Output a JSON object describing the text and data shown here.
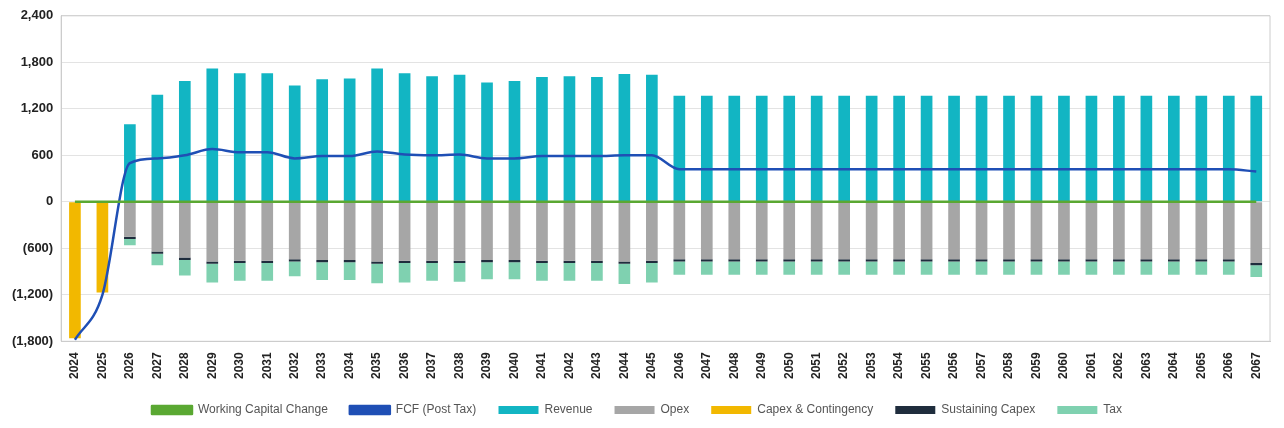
{
  "chart_data": {
    "type": "bar",
    "stacked": true,
    "categories": [
      "2024",
      "2025",
      "2026",
      "2027",
      "2028",
      "2029",
      "2030",
      "2031",
      "2032",
      "2033",
      "2034",
      "2035",
      "2036",
      "2037",
      "2038",
      "2039",
      "2040",
      "2041",
      "2042",
      "2043",
      "2044",
      "2045",
      "2046",
      "2047",
      "2048",
      "2049",
      "2050",
      "2051",
      "2052",
      "2053",
      "2054",
      "2055",
      "2056",
      "2057",
      "2058",
      "2059",
      "2060",
      "2061",
      "2062",
      "2063",
      "2064",
      "2065",
      "2066",
      "2067"
    ],
    "ylim": [
      -1800,
      2400
    ],
    "yticks": [
      {
        "value": -1800,
        "label": "(1,800)"
      },
      {
        "value": -1200,
        "label": "(1,200)"
      },
      {
        "value": -600,
        "label": "(600)"
      },
      0,
      {
        "value": 600,
        "label": "600"
      },
      {
        "value": 1200,
        "label": "1,200"
      },
      {
        "value": 1800,
        "label": "1,800"
      },
      {
        "value": 2400,
        "label": "2,400"
      }
    ],
    "grid": "y",
    "legend": "bottom",
    "series": [
      {
        "name": "Revenue",
        "color": "#12b5c3",
        "values": [
          0,
          0,
          1000,
          1380,
          1560,
          1720,
          1660,
          1660,
          1500,
          1580,
          1590,
          1720,
          1660,
          1620,
          1640,
          1540,
          1560,
          1610,
          1620,
          1610,
          1650,
          1640,
          1370,
          1370,
          1370,
          1370,
          1370,
          1370,
          1370,
          1370,
          1370,
          1370,
          1370,
          1370,
          1370,
          1370,
          1370,
          1370,
          1370,
          1370,
          1370,
          1370,
          1370,
          1370
        ]
      },
      {
        "name": "Opex",
        "color": "#a6a6a6",
        "values": [
          0,
          0,
          -450,
          -640,
          -720,
          -770,
          -760,
          -760,
          -740,
          -750,
          -750,
          -770,
          -760,
          -760,
          -760,
          -750,
          -750,
          -760,
          -760,
          -760,
          -770,
          -760,
          -740,
          -740,
          -740,
          -740,
          -740,
          -740,
          -740,
          -740,
          -740,
          -740,
          -740,
          -740,
          -740,
          -740,
          -740,
          -740,
          -740,
          -740,
          -740,
          -740,
          -740,
          -790
        ]
      },
      {
        "name": "Capex & Contingency",
        "color": "#f2b800",
        "values": [
          -1760,
          -1170,
          0,
          0,
          0,
          0,
          0,
          0,
          0,
          0,
          0,
          0,
          0,
          0,
          0,
          0,
          0,
          0,
          0,
          0,
          0,
          0,
          0,
          0,
          0,
          0,
          0,
          0,
          0,
          0,
          0,
          0,
          0,
          0,
          0,
          0,
          0,
          0,
          0,
          0,
          0,
          0,
          0,
          0
        ]
      },
      {
        "name": "Sustaining Capex",
        "color": "#1f2d3d",
        "values": [
          0,
          0,
          -30,
          -30,
          -30,
          -30,
          -30,
          -30,
          -30,
          -30,
          -30,
          -30,
          -30,
          -30,
          -30,
          -30,
          -30,
          -30,
          -30,
          -30,
          -30,
          -30,
          -30,
          -30,
          -30,
          -30,
          -30,
          -30,
          -30,
          -30,
          -30,
          -30,
          -30,
          -30,
          -30,
          -30,
          -30,
          -30,
          -30,
          -30,
          -30,
          -30,
          -30,
          -30
        ]
      },
      {
        "name": "Tax",
        "color": "#7fd1b0",
        "values": [
          0,
          0,
          -80,
          -150,
          -200,
          -240,
          -230,
          -230,
          -190,
          -230,
          -230,
          -250,
          -250,
          -230,
          -240,
          -220,
          -220,
          -230,
          -230,
          -230,
          -260,
          -250,
          -170,
          -170,
          -170,
          -170,
          -170,
          -170,
          -170,
          -170,
          -170,
          -170,
          -170,
          -170,
          -170,
          -170,
          -170,
          -170,
          -170,
          -170,
          -170,
          -170,
          -170,
          -150
        ]
      },
      {
        "name": "Working Capital Change",
        "type": "line",
        "color": "#5aa832",
        "values": [
          0,
          0,
          0,
          0,
          0,
          0,
          0,
          0,
          0,
          0,
          0,
          0,
          0,
          0,
          0,
          0,
          0,
          0,
          0,
          0,
          0,
          0,
          0,
          0,
          0,
          0,
          0,
          0,
          0,
          0,
          0,
          0,
          0,
          0,
          0,
          0,
          0,
          0,
          0,
          0,
          0,
          0,
          0,
          0
        ]
      },
      {
        "name": "FCF (Post Tax)",
        "type": "line",
        "color": "#1f4fb5",
        "values": [
          -1780,
          -1200,
          500,
          560,
          600,
          680,
          640,
          640,
          560,
          590,
          590,
          650,
          610,
          600,
          610,
          560,
          560,
          590,
          590,
          590,
          600,
          600,
          420,
          420,
          420,
          420,
          420,
          420,
          420,
          420,
          420,
          420,
          420,
          420,
          420,
          420,
          420,
          420,
          420,
          420,
          420,
          420,
          420,
          390
        ]
      }
    ]
  }
}
